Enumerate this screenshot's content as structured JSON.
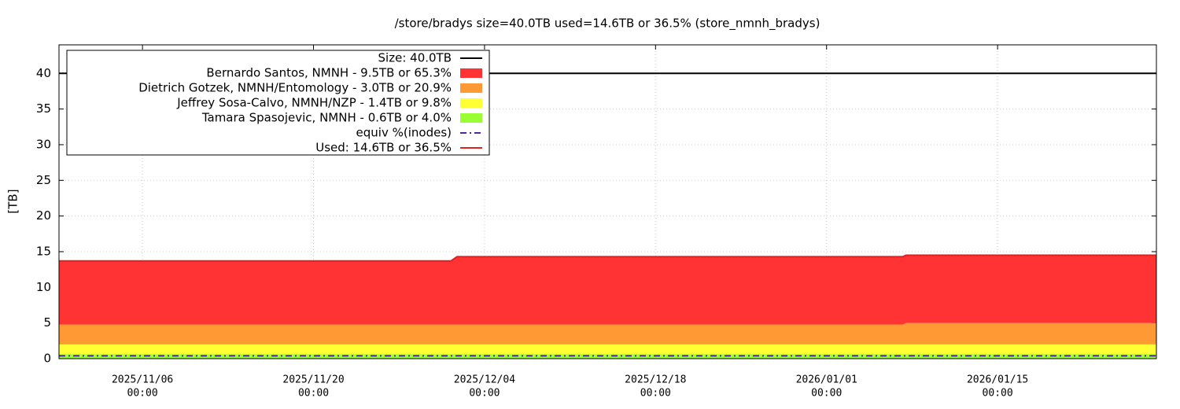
{
  "chart_data": {
    "type": "stacked-area",
    "title": "/store/bradys size=40.0TB used=14.6TB or 36.5% (store_nmnh_bradys)",
    "y_label": "[TB]",
    "x": [
      "2025-10-30 04:00",
      "2025-12-01 06:00",
      "2025-12-01 18:00",
      "2026-01-07 06:00",
      "2026-01-07 12:00",
      "2026-01-28 00:00"
    ],
    "xlim": [
      "2025-10-30 04:00",
      "2026-01-28 00:00"
    ],
    "xticks": [
      {
        "value": "2025-11-06 00:00",
        "label": [
          "2025/11/06",
          "00:00"
        ]
      },
      {
        "value": "2025-11-20 00:00",
        "label": [
          "2025/11/20",
          "00:00"
        ]
      },
      {
        "value": "2025-12-04 00:00",
        "label": [
          "2025/12/04",
          "00:00"
        ]
      },
      {
        "value": "2025-12-18 00:00",
        "label": [
          "2025/12/18",
          "00:00"
        ]
      },
      {
        "value": "2026-01-01 00:00",
        "label": [
          "2026/01/01",
          "00:00"
        ]
      },
      {
        "value": "2026-01-15 00:00",
        "label": [
          "2026/01/15",
          "00:00"
        ]
      }
    ],
    "ylim": [
      0,
      44
    ],
    "yticks": [
      0,
      5,
      10,
      15,
      20,
      25,
      30,
      35,
      40
    ],
    "grid": true,
    "legend": "top-left",
    "series": [
      {
        "name": "Size: 40.0TB",
        "kind": "line",
        "color": "#000000",
        "values": [
          40,
          40,
          40,
          40,
          40,
          40
        ]
      },
      {
        "name": "Bernardo Santos, NMNH - 9.5TB or 65.3%",
        "kind": "area",
        "color": "#ff3333",
        "values": [
          8.9,
          8.9,
          9.5,
          9.5,
          9.5,
          9.5
        ]
      },
      {
        "name": "Dietrich Gotzek, NMNH/Entomology - 3.0TB or 20.9%",
        "kind": "area",
        "color": "#ff9933",
        "values": [
          2.8,
          2.8,
          2.8,
          2.8,
          3.0,
          3.0
        ]
      },
      {
        "name": "Jeffrey Sosa-Calvo, NMNH/NZP - 1.4TB or 9.8%",
        "kind": "area",
        "color": "#ffff33",
        "values": [
          1.4,
          1.4,
          1.4,
          1.4,
          1.4,
          1.4
        ]
      },
      {
        "name": "Tamara Spasojevic, NMNH - 0.6TB or 4.0%",
        "kind": "area",
        "color": "#99ff33",
        "values": [
          0.6,
          0.6,
          0.6,
          0.6,
          0.6,
          0.6
        ]
      },
      {
        "name": "equiv %(inodes)",
        "kind": "dashed",
        "color": "#5522aa",
        "values": [
          0.4,
          0.4,
          0.4,
          0.4,
          0.4,
          0.4
        ]
      },
      {
        "name": "Used: 14.6TB or 36.5%",
        "kind": "line",
        "color": "#dd2222",
        "values": [
          13.7,
          13.7,
          14.3,
          14.3,
          14.5,
          14.5
        ]
      }
    ]
  }
}
